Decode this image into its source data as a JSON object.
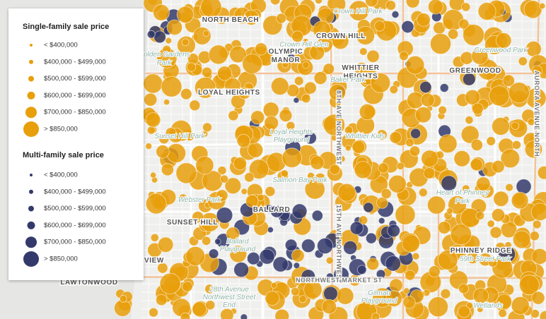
{
  "legend": {
    "single_family": {
      "title": "Single-family sale price",
      "items": [
        "< $400,000",
        "$400,000 - $499,000",
        "$500,000 - $599,000",
        "$600,000 - $699,000",
        "$700,000 - $850,000",
        "> $850,000"
      ]
    },
    "multi_family": {
      "title": "Multi-family sale price",
      "items": [
        "< $400,000",
        "$400,000 - $499,000",
        "$500,000 - $599,000",
        "$600,000 - $699,000",
        "$700,000 - $850,000",
        "> $850,000"
      ]
    }
  },
  "places": [
    "NORTH BEACH",
    "CROWN HILL",
    "OLYMPIC",
    "MANOR",
    "WHITTIER",
    "HEIGHTS",
    "GREENWOOD",
    "LOYAL HEIGHTS",
    "BALLARD",
    "SUNSET HILL",
    "PHINNEY RIDGE",
    "LAWTONWOOD",
    "VIEW"
  ],
  "parks": [
    "Golden Gardens",
    "Park",
    "Crown Hill Glen",
    "Baker Park",
    "Greenwood Park",
    "Loyal Heights",
    "Playground",
    "Whittier Kids",
    "Sunset Hill Park",
    "Salmon Bay Park",
    "Webster Park",
    "Ballard",
    "Playground",
    "Heart of Phinney",
    "Park",
    "59th Street Park",
    "28th Avenue",
    "Northwest Street",
    "End",
    "Gilman",
    "Playground",
    "Wetlands",
    "Crown Hill Park"
  ],
  "streets": [
    "15TH AVE NORTHWEST",
    "NORTHWEST MARKET ST",
    "AURORA AVENUE NORTH",
    "8TH AVE NORTHWEST"
  ]
}
